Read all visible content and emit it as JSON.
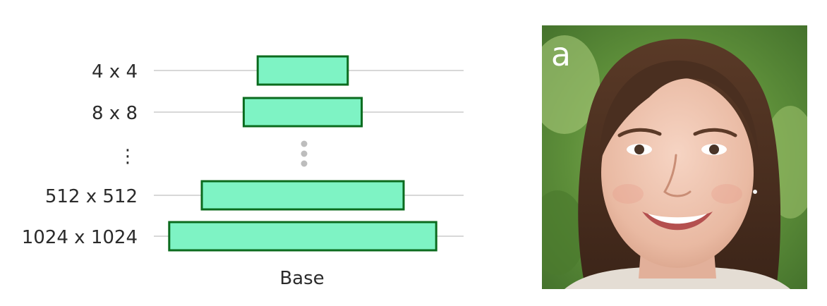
{
  "diagram": {
    "rows": [
      {
        "label": "4 x 4",
        "bar_width_fraction": 0.29
      },
      {
        "label": "8 x 8",
        "bar_width_fraction": 0.38
      },
      {
        "label": "512 x 512",
        "bar_width_fraction": 0.65
      },
      {
        "label": "1024 x 1024",
        "bar_width_fraction": 0.86
      }
    ],
    "ellipsis": "⋮",
    "caption": "Base",
    "colors": {
      "bar_fill": "#7ef3c4",
      "bar_stroke": "#0b6b1e",
      "guide_line": "#cccccc",
      "ellipsis_dots": "#bdbdbd",
      "label_ellipsis": "#222222"
    }
  },
  "photo": {
    "panel_letter": "a",
    "subject": "portrait-of-smiling-woman"
  }
}
